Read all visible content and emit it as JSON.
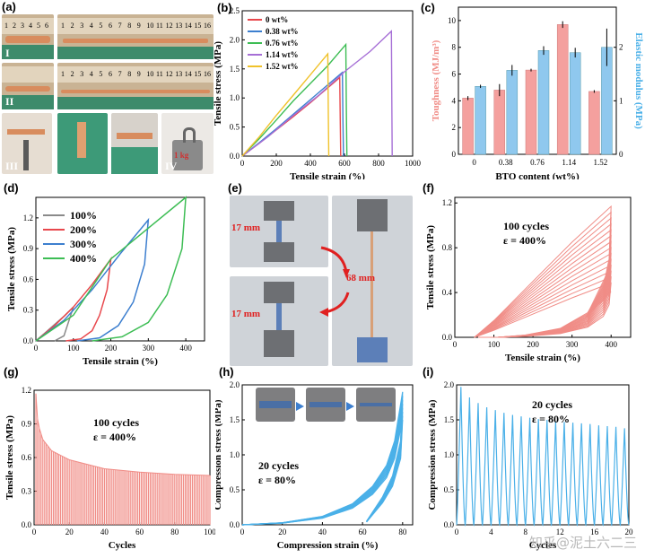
{
  "panel_letters": {
    "a": "(a)",
    "b": "(b)",
    "c": "(c)",
    "d": "(d)",
    "e": "(e)",
    "f": "(f)",
    "g": "(g)",
    "h": "(h)",
    "i": "(i)"
  },
  "panel_a": {
    "roman": [
      "I",
      "II",
      "III",
      "IV"
    ],
    "ruler_numbers_short": [
      "1",
      "2",
      "3",
      "4",
      "5",
      "6"
    ],
    "ruler_numbers_long": [
      "1",
      "2",
      "3",
      "4",
      "5",
      "6",
      "7",
      "8",
      "9",
      "10",
      "11",
      "12",
      "13",
      "14",
      "15",
      "16"
    ],
    "weight_label": "1 kg"
  },
  "panel_e": {
    "labels": [
      "17 mm",
      "68 mm",
      "17 mm"
    ]
  },
  "chart_data": [
    {
      "id": "b",
      "type": "line",
      "xlabel": "Tensile strain (%)",
      "ylabel": "Tensile stress (MPa)",
      "xlim": [
        0,
        1000
      ],
      "ylim": [
        0,
        2.5
      ],
      "xticks": [
        0,
        200,
        400,
        600,
        800,
        1000
      ],
      "yticks": [
        0.0,
        0.5,
        1.0,
        1.5,
        2.0,
        2.5
      ],
      "legend": "top-left",
      "series": [
        {
          "name": "0 wt%",
          "color": "#e8474c",
          "x": [
            0,
            100,
            200,
            300,
            400,
            500,
            572,
            575,
            578
          ],
          "y": [
            0,
            0.22,
            0.45,
            0.68,
            0.92,
            1.17,
            1.35,
            0.6,
            0
          ]
        },
        {
          "name": "0.38 wt%",
          "color": "#3d7fcf",
          "x": [
            0,
            100,
            200,
            300,
            400,
            500,
            588,
            591,
            594
          ],
          "y": [
            0,
            0.23,
            0.47,
            0.72,
            0.97,
            1.22,
            1.44,
            0.6,
            0
          ]
        },
        {
          "name": "0.76 wt%",
          "color": "#3dbd54",
          "x": [
            0,
            100,
            200,
            300,
            400,
            500,
            608,
            611,
            614
          ],
          "y": [
            0,
            0.3,
            0.62,
            0.95,
            1.25,
            1.55,
            1.92,
            0.8,
            0
          ]
        },
        {
          "name": "1.14 wt%",
          "color": "#a66fd6",
          "x": [
            0,
            150,
            300,
            450,
            600,
            750,
            875,
            878,
            880
          ],
          "y": [
            0,
            0.33,
            0.7,
            1.05,
            1.45,
            1.8,
            2.15,
            0.9,
            0
          ]
        },
        {
          "name": "1.52 wt%",
          "color": "#f0c22b",
          "x": [
            0,
            100,
            200,
            300,
            400,
            502,
            505,
            508
          ],
          "y": [
            0,
            0.33,
            0.7,
            1.05,
            1.4,
            1.76,
            0.7,
            0
          ]
        }
      ]
    },
    {
      "id": "c",
      "type": "bar",
      "xlabel": "BTO content (wt%)",
      "ylabel": "Toughness (MJ/m³)",
      "ylabel2": "Elastic modulus (MPa)",
      "categories": [
        "0",
        "0.38",
        "0.76",
        "1.14",
        "1.52"
      ],
      "ylim": [
        0,
        11
      ],
      "ylim2": [
        0,
        2.75
      ],
      "yticks": [
        0,
        2,
        4,
        6,
        8,
        10
      ],
      "yticks2": [
        0,
        1,
        2
      ],
      "series": [
        {
          "name": "Toughness",
          "axis": "left",
          "color": "#f4a09e",
          "values": [
            4.2,
            4.8,
            6.3,
            9.7,
            4.7
          ],
          "errors": [
            0.15,
            0.45,
            0.1,
            0.25,
            0.1
          ]
        },
        {
          "name": "Elastic modulus",
          "axis": "right",
          "color": "#8fc8ee",
          "values": [
            1.27,
            1.57,
            1.94,
            1.9,
            2.0
          ],
          "errors": [
            0.03,
            0.1,
            0.08,
            0.09,
            0.35
          ]
        }
      ]
    },
    {
      "id": "d",
      "type": "line",
      "xlabel": "Tensile strain (%)",
      "ylabel": "Tensile stress (MPa)",
      "xlim": [
        0,
        450
      ],
      "ylim": [
        0,
        1.4
      ],
      "xticks": [
        0,
        100,
        200,
        300,
        400
      ],
      "yticks": [
        0.0,
        0.3,
        0.6,
        0.9,
        1.2
      ],
      "legend": "top-left",
      "series": [
        {
          "name": "100%",
          "color": "#8a8a8a",
          "x": [
            0,
            25,
            50,
            75,
            100,
            75,
            50
          ],
          "y": [
            0,
            0.08,
            0.16,
            0.24,
            0.33,
            0.05,
            0
          ]
        },
        {
          "name": "200%",
          "color": "#e8474c",
          "x": [
            0,
            50,
            100,
            150,
            200,
            190,
            170,
            150,
            120,
            80
          ],
          "y": [
            0,
            0.15,
            0.33,
            0.55,
            0.8,
            0.5,
            0.25,
            0.1,
            0.02,
            0
          ]
        },
        {
          "name": "300%",
          "color": "#3d7fcf",
          "x": [
            0,
            75,
            150,
            225,
            300,
            290,
            260,
            220,
            170,
            110
          ],
          "y": [
            0,
            0.2,
            0.5,
            0.85,
            1.18,
            0.75,
            0.38,
            0.15,
            0.03,
            0
          ]
        },
        {
          "name": "400%",
          "color": "#3dbd54",
          "x": [
            0,
            100,
            200,
            300,
            400,
            390,
            350,
            300,
            230,
            150
          ],
          "y": [
            0,
            0.25,
            0.8,
            1.1,
            1.4,
            0.9,
            0.45,
            0.18,
            0.04,
            0
          ]
        }
      ]
    },
    {
      "id": "f",
      "type": "line",
      "xlabel": "Tensile strain (%)",
      "ylabel": "Tensile stress (MPa)",
      "xlim": [
        0,
        450
      ],
      "ylim": [
        0,
        1.25
      ],
      "xticks": [
        0,
        100,
        200,
        300,
        400
      ],
      "yticks": [
        0.0,
        0.4,
        0.8,
        1.2
      ],
      "annotation": [
        "100 cycles",
        "ε = 400%"
      ],
      "series": [
        {
          "name": "",
          "color": "#f08c86",
          "x": [
            50,
            100,
            200,
            300,
            400,
            395,
            380,
            340,
            270,
            180,
            110,
            60
          ],
          "y": [
            0,
            0.15,
            0.5,
            0.85,
            1.17,
            0.7,
            0.45,
            0.22,
            0.08,
            0.02,
            0,
            0
          ]
        }
      ]
    },
    {
      "id": "g",
      "type": "line",
      "xlabel": "Cycles",
      "ylabel": "Tensile stress (MPa)",
      "xlim": [
        0,
        100
      ],
      "ylim": [
        0,
        1.2
      ],
      "xticks": [
        0,
        20,
        40,
        60,
        80,
        100
      ],
      "yticks": [
        0.0,
        0.3,
        0.6,
        0.9,
        1.2
      ],
      "annotation": [
        "100 cycles",
        "ε = 400%"
      ],
      "series": [
        {
          "name": "",
          "color": "#f08c86",
          "x": [
            1,
            2,
            3,
            5,
            10,
            20,
            40,
            60,
            80,
            100
          ],
          "y": [
            1.17,
            0.94,
            0.86,
            0.76,
            0.66,
            0.58,
            0.5,
            0.47,
            0.45,
            0.44
          ]
        }
      ]
    },
    {
      "id": "h",
      "type": "line",
      "xlabel": "Compression strain (%)",
      "ylabel": "Compression stress (MPa)",
      "xlim": [
        0,
        85
      ],
      "ylim": [
        0,
        2.0
      ],
      "xticks": [
        0,
        20,
        40,
        60,
        80
      ],
      "yticks": [
        0.0,
        0.5,
        1.0,
        1.5,
        2.0
      ],
      "annotation": [
        "20 cycles",
        "ε = 80%"
      ],
      "series": [
        {
          "name": "",
          "color": "#4ab0e8",
          "x": [
            0,
            20,
            40,
            55,
            65,
            72,
            76,
            80,
            79,
            75,
            70,
            62
          ],
          "y": [
            0,
            0.03,
            0.12,
            0.3,
            0.55,
            0.85,
            1.2,
            1.9,
            1.2,
            0.7,
            0.4,
            0.05
          ]
        }
      ]
    },
    {
      "id": "i",
      "type": "line",
      "xlabel": "Cycles",
      "ylabel": "Compression stress (MPa)",
      "xlim": [
        0,
        20
      ],
      "ylim": [
        0,
        2.0
      ],
      "xticks": [
        0,
        4,
        8,
        12,
        16,
        20
      ],
      "yticks": [
        0.0,
        0.5,
        1.0,
        1.5,
        2.0
      ],
      "annotation": [
        "20 cycles",
        "ε = 80%"
      ],
      "series": [
        {
          "name": "",
          "color": "#4ab0e8",
          "x": [
            1,
            2,
            3,
            4,
            5,
            6,
            7,
            8,
            9,
            10,
            11,
            12,
            13,
            14,
            15,
            16,
            17,
            18,
            19,
            20
          ],
          "y": [
            1.97,
            1.82,
            1.74,
            1.68,
            1.64,
            1.6,
            1.57,
            1.55,
            1.53,
            1.51,
            1.5,
            1.48,
            1.47,
            1.46,
            1.45,
            1.44,
            1.42,
            1.41,
            1.4,
            1.38
          ]
        }
      ]
    }
  ],
  "watermark": "知乎@泥土六二三"
}
